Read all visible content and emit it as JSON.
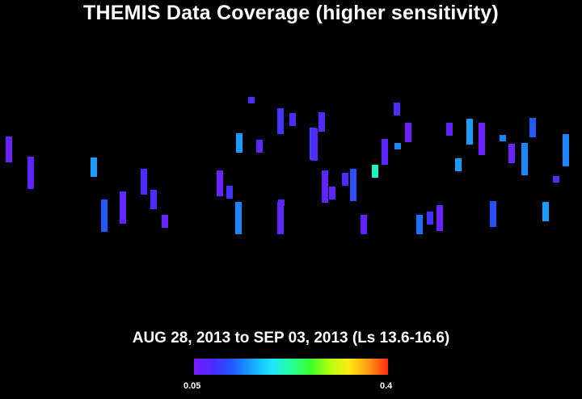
{
  "chart_data": {
    "type": "heatmap",
    "title": "THEMIS Data Coverage (higher sensitivity)",
    "subtitle": "AUG 28, 2013 to SEP 03, 2013 (Ls 13.6-16.6)",
    "colorbar": {
      "min_label": "0.05",
      "max_label": "0.4",
      "min": 0.05,
      "max": 0.4,
      "colors": [
        "#7a1cff",
        "#4a2cff",
        "#1f5bff",
        "#18a6ff",
        "#1ee6ff",
        "#22ff9a",
        "#39ff2a",
        "#b6ff12",
        "#ffe812",
        "#ff9a12",
        "#ff2a12"
      ]
    },
    "cells": [
      [
        8,
        0.15
      ],
      [
        13,
        0.08
      ],
      [
        15,
        0.06
      ],
      [
        22,
        0.15
      ],
      [
        27,
        0.08
      ],
      [
        29,
        0.14
      ],
      [
        30,
        0.08
      ],
      [
        32,
        0.06
      ],
      [
        2,
        0.07
      ],
      [
        9,
        0.12
      ],
      [
        11,
        0.07
      ],
      [
        26,
        0.09
      ],
      [
        29,
        0.11
      ],
      [
        31,
        0.07
      ],
      [
        35,
        0.21
      ],
      [
        37,
        0.14
      ],
      [
        14,
        0.08
      ],
      [
        20,
        0.06
      ],
      [
        21,
        0.09
      ],
      [
        23,
        0.08
      ],
      [
        26,
        0.07
      ],
      [
        29,
        0.08
      ],
      [
        30,
        0.07
      ],
      [
        33,
        0.11
      ],
      [
        34,
        0.07
      ],
      [
        37,
        0.08
      ],
      [
        38,
        0.06
      ],
      [
        39,
        0.13
      ],
      [
        40,
        0.09
      ],
      [
        0,
        0.06
      ],
      [
        22,
        0.14
      ],
      [
        24,
        0.07
      ],
      [
        26,
        0.07
      ],
      [
        32,
        0.08
      ],
      [
        36,
        0.07
      ],
      [
        41,
        0.06
      ],
      [
        42,
        0.07
      ],
      [
        43,
        0.15
      ],
      [
        44,
        0.15
      ],
      [
        45,
        0.06
      ],
      [
        46,
        0.11
      ],
      [
        47,
        0.14
      ],
      [
        48,
        0.06
      ],
      [
        49,
        0.14
      ],
      [
        50,
        0.12
      ],
      [
        51,
        0.15
      ],
      [
        52,
        0.07
      ],
      [
        53,
        0.14
      ]
    ]
  }
}
